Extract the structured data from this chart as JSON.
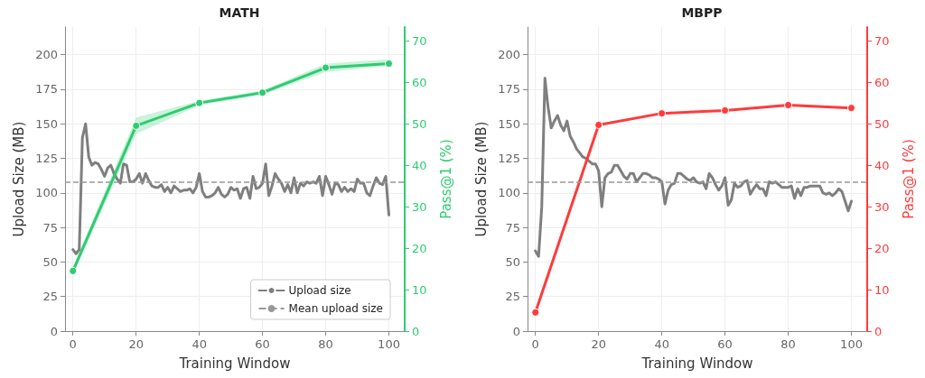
{
  "chart_data": [
    {
      "type": "line",
      "title": "MATH",
      "xlabel": "Training Window",
      "ylabel": "Upload Size (MB)",
      "y2label": "Pass@1 (%)",
      "xlim": [
        -2.5,
        105
      ],
      "xticks": [
        0,
        20,
        40,
        60,
        80,
        100
      ],
      "ylim": [
        0,
        220
      ],
      "yticks": [
        0,
        25,
        50,
        75,
        100,
        125,
        150,
        175,
        200
      ],
      "y2lim": [
        0,
        73.3
      ],
      "y2ticks": [
        0,
        10,
        20,
        30,
        40,
        50,
        60,
        70
      ],
      "grid": true,
      "legend": "bottom right",
      "line_style": "solid",
      "ref_lines": [
        {
          "axis": "y",
          "value": 108,
          "label": "Mean upload size",
          "color": "#999999",
          "line_style": "dashed"
        }
      ],
      "series": [
        {
          "name": "Upload size",
          "color": "#7f7f7f",
          "marker": "none",
          "x": [
            0,
            1,
            2,
            3,
            4,
            5,
            6,
            7,
            8,
            9,
            10,
            11,
            12,
            13,
            14,
            15,
            16,
            17,
            18,
            19,
            20,
            21,
            22,
            23,
            24,
            25,
            26,
            27,
            28,
            29,
            30,
            31,
            32,
            33,
            34,
            35,
            36,
            37,
            38,
            39,
            40,
            41,
            42,
            43,
            44,
            45,
            46,
            47,
            48,
            49,
            50,
            51,
            52,
            53,
            54,
            55,
            56,
            57,
            58,
            59,
            60,
            61,
            62,
            63,
            64,
            65,
            66,
            67,
            68,
            69,
            70,
            71,
            72,
            73,
            74,
            75,
            76,
            77,
            78,
            79,
            80,
            81,
            82,
            83,
            84,
            85,
            86,
            87,
            88,
            89,
            90,
            91,
            92,
            93,
            94,
            95,
            96,
            97,
            98,
            99,
            100
          ],
          "values": [
            59,
            56,
            59,
            140,
            150,
            126,
            120,
            122,
            121,
            117,
            112,
            118,
            120,
            114,
            110,
            107,
            121,
            120,
            108,
            108,
            110,
            114,
            107,
            114,
            109,
            105,
            104,
            104,
            106,
            101,
            104,
            100,
            105,
            103,
            101,
            102,
            102,
            103,
            100,
            104,
            114,
            101,
            97,
            97,
            98,
            100,
            104,
            99,
            97,
            99,
            104,
            102,
            103,
            96,
            103,
            104,
            96,
            112,
            103,
            104,
            107,
            121,
            98,
            105,
            114,
            110,
            107,
            101,
            106,
            100,
            111,
            100,
            107,
            105,
            108,
            107,
            108,
            107,
            112,
            98,
            112,
            106,
            99,
            107,
            106,
            101,
            104,
            101,
            103,
            101,
            110,
            107,
            107,
            100,
            98,
            105,
            111,
            107,
            106,
            112,
            84
          ]
        },
        {
          "color": "#2ecc71",
          "axis": "y2",
          "marker": "circle",
          "x": [
            0,
            20,
            40,
            60,
            80,
            100
          ],
          "values": [
            14.5,
            49.5,
            55,
            57.5,
            63.5,
            64.5
          ],
          "lower": [
            13.5,
            47.5,
            54.5,
            57,
            62.5,
            64
          ],
          "upper": [
            15.5,
            51.5,
            55.5,
            58,
            64.5,
            65.5
          ]
        }
      ]
    },
    {
      "type": "line",
      "title": "MBPP",
      "xlabel": "Training Window",
      "ylabel": "Upload Size (MB)",
      "y2label": "Pass@1 (%)",
      "xlim": [
        -2.5,
        105
      ],
      "xticks": [
        0,
        20,
        40,
        60,
        80,
        100
      ],
      "ylim": [
        0,
        220
      ],
      "yticks": [
        0,
        25,
        50,
        75,
        100,
        125,
        150,
        175,
        200
      ],
      "y2lim": [
        0,
        73.3
      ],
      "y2ticks": [
        0,
        10,
        20,
        30,
        40,
        50,
        60,
        70
      ],
      "grid": true,
      "line_style": "solid",
      "ref_lines": [
        {
          "axis": "y",
          "value": 108,
          "color": "#999999",
          "line_style": "dashed"
        }
      ],
      "series": [
        {
          "color": "#7f7f7f",
          "marker": "none",
          "x": [
            0,
            1,
            2,
            3,
            4,
            5,
            6,
            7,
            8,
            9,
            10,
            11,
            12,
            13,
            14,
            15,
            16,
            17,
            18,
            19,
            20,
            21,
            22,
            23,
            24,
            25,
            26,
            27,
            28,
            29,
            30,
            31,
            32,
            33,
            34,
            35,
            36,
            37,
            38,
            39,
            40,
            41,
            42,
            43,
            44,
            45,
            46,
            47,
            48,
            49,
            50,
            51,
            52,
            53,
            54,
            55,
            56,
            57,
            58,
            59,
            60,
            61,
            62,
            63,
            64,
            65,
            66,
            67,
            68,
            69,
            70,
            71,
            72,
            73,
            74,
            75,
            76,
            77,
            78,
            79,
            80,
            81,
            82,
            83,
            84,
            85,
            86,
            87,
            88,
            89,
            90,
            91,
            92,
            93,
            94,
            95,
            96,
            97,
            98,
            99,
            100
          ],
          "values": [
            58,
            54,
            90,
            183,
            162,
            147,
            152,
            156,
            149,
            145,
            152,
            141,
            137,
            132,
            129,
            126,
            125,
            123,
            121,
            121,
            116,
            90,
            111,
            114,
            115,
            120,
            120,
            116,
            112,
            110,
            114,
            114,
            108,
            111,
            114,
            114,
            113,
            111,
            111,
            110,
            108,
            92,
            102,
            106,
            107,
            114,
            114,
            112,
            110,
            109,
            111,
            108,
            107,
            108,
            103,
            114,
            111,
            106,
            102,
            105,
            111,
            91,
            95,
            107,
            104,
            105,
            108,
            109,
            99,
            103,
            106,
            103,
            103,
            98,
            108,
            107,
            108,
            106,
            104,
            104,
            104,
            105,
            96,
            103,
            98,
            104,
            104,
            105,
            105,
            105,
            105,
            100,
            99,
            100,
            98,
            100,
            103,
            101,
            94,
            87,
            94
          ]
        },
        {
          "color": "#ff3b3b",
          "axis": "y2",
          "marker": "circle",
          "x": [
            0,
            20,
            40,
            60,
            80,
            100
          ],
          "values": [
            4.5,
            49.7,
            52.5,
            53.2,
            54.5,
            53.8
          ]
        }
      ]
    }
  ]
}
